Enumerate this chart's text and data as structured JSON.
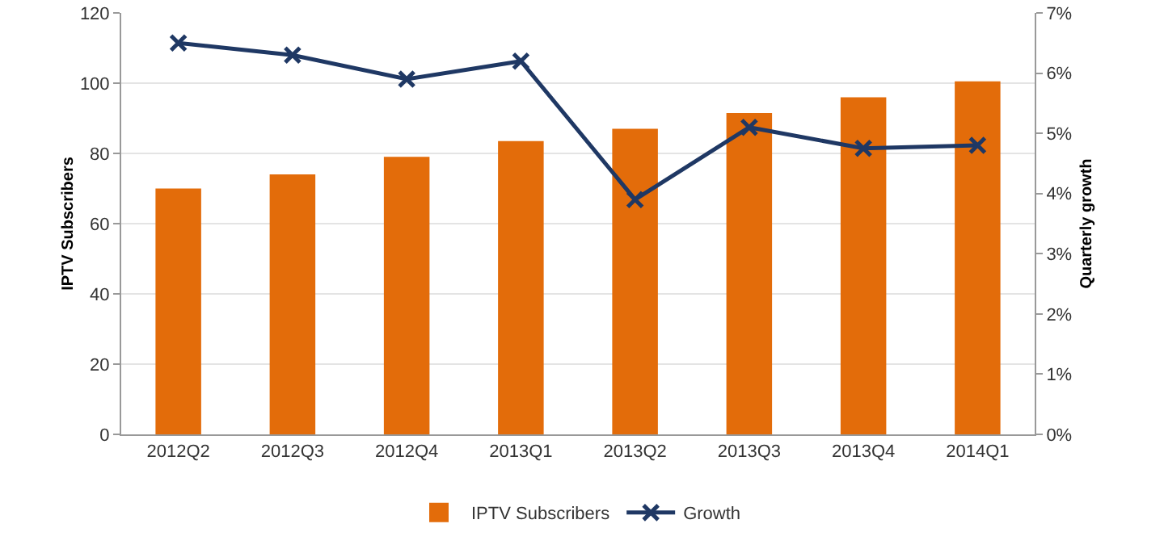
{
  "chart_data": {
    "type": "bar",
    "ylabel": "IPTV Subscribers",
    "y2label": "Quarterly growth",
    "categories": [
      "2012Q2",
      "2012Q3",
      "2012Q4",
      "2013Q1",
      "2013Q2",
      "2013Q3",
      "2013Q4",
      "2014Q1"
    ],
    "series": [
      {
        "name": "IPTV Subscribers",
        "color": "#e36c0a",
        "values": [
          70,
          74,
          79,
          83.5,
          87,
          91.5,
          96,
          100.5
        ]
      },
      {
        "name": "Growth",
        "type": "line",
        "axis": "y2",
        "color": "#1f3864",
        "marker": "cross",
        "values": [
          6.5,
          6.3,
          5.9,
          6.2,
          3.9,
          5.1,
          4.75,
          4.8
        ]
      }
    ],
    "ylim": [
      0,
      120
    ],
    "yticks": [
      0,
      20,
      40,
      60,
      80,
      100,
      120
    ],
    "y2lim": [
      0,
      7
    ],
    "y2ticks": [
      {
        "value": 0,
        "label": "0%"
      },
      {
        "value": 1,
        "label": "1%"
      },
      {
        "value": 2,
        "label": "2%"
      },
      {
        "value": 3,
        "label": "3%"
      },
      {
        "value": 4,
        "label": "4%"
      },
      {
        "value": 5,
        "label": "5%"
      },
      {
        "value": 6,
        "label": "6%"
      },
      {
        "value": 7,
        "label": "7%"
      }
    ],
    "grid": "y",
    "legend": "bottom"
  }
}
